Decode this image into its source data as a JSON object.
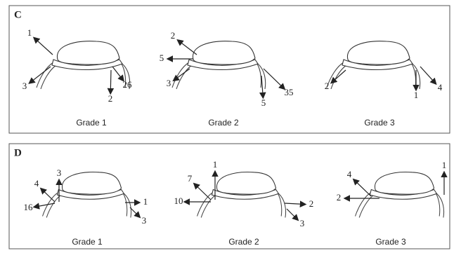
{
  "panels": [
    {
      "label": "C",
      "figures": [
        {
          "caption": "Grade 1",
          "numbers": [
            1,
            3,
            2,
            26
          ]
        },
        {
          "caption": "Grade 2",
          "numbers": [
            2,
            5,
            3,
            5,
            35
          ]
        },
        {
          "caption": "Grade 3",
          "numbers": [
            2,
            1,
            4
          ]
        }
      ]
    },
    {
      "label": "D",
      "figures": [
        {
          "caption": "Grade 1",
          "numbers": [
            3,
            4,
            16,
            1,
            3
          ]
        },
        {
          "caption": "Grade 2",
          "numbers": [
            1,
            7,
            10,
            2,
            3
          ]
        },
        {
          "caption": "Grade 3",
          "numbers": [
            4,
            2,
            1
          ]
        }
      ]
    }
  ]
}
